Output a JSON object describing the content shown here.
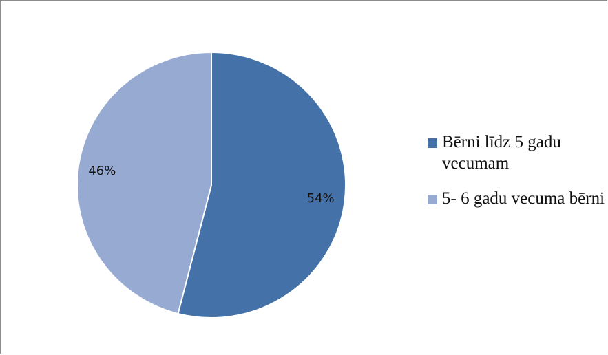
{
  "chart_data": {
    "type": "pie",
    "title": "",
    "categories": [
      "Bērni līdz 5 gadu vecumam",
      "5- 6 gadu vecuma bērni"
    ],
    "values": [
      54,
      46
    ],
    "data_labels": [
      "54%",
      "46%"
    ],
    "colors": [
      "#4472a8",
      "#96aad2"
    ],
    "legend_position": "right"
  }
}
